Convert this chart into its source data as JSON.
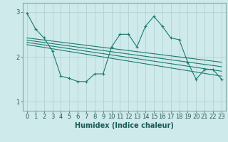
{
  "bg_color": "#ceeaea",
  "grid_color": "#b8d4d4",
  "line_color": "#1a7a6e",
  "xlabel": "Humidex (Indice chaleur)",
  "xlabel_fontsize": 7,
  "tick_fontsize": 6,
  "xlim": [
    -0.5,
    23.5
  ],
  "ylim": [
    0.8,
    3.2
  ],
  "yticks": [
    1,
    2,
    3
  ],
  "xticks": [
    0,
    1,
    2,
    3,
    4,
    5,
    6,
    7,
    8,
    9,
    10,
    11,
    12,
    13,
    14,
    15,
    16,
    17,
    18,
    19,
    20,
    21,
    22,
    23
  ],
  "series1_x": [
    0,
    1,
    2,
    3,
    4,
    5,
    6,
    7,
    8,
    9,
    10,
    11,
    12,
    13,
    14,
    15,
    16,
    17,
    18,
    19,
    20,
    21,
    22,
    23
  ],
  "series1_y": [
    2.97,
    2.62,
    2.42,
    2.13,
    1.57,
    1.52,
    1.45,
    1.45,
    1.62,
    1.62,
    2.22,
    2.5,
    2.5,
    2.22,
    2.68,
    2.9,
    2.68,
    2.42,
    2.38,
    1.88,
    1.5,
    1.72,
    1.72,
    1.5
  ],
  "line1_x": [
    0,
    23
  ],
  "line1_y": [
    2.42,
    1.88
  ],
  "line2_x": [
    0,
    23
  ],
  "line2_y": [
    2.37,
    1.78
  ],
  "line3_x": [
    0,
    23
  ],
  "line3_y": [
    2.32,
    1.68
  ],
  "line4_x": [
    0,
    23
  ],
  "line4_y": [
    2.27,
    1.57
  ]
}
